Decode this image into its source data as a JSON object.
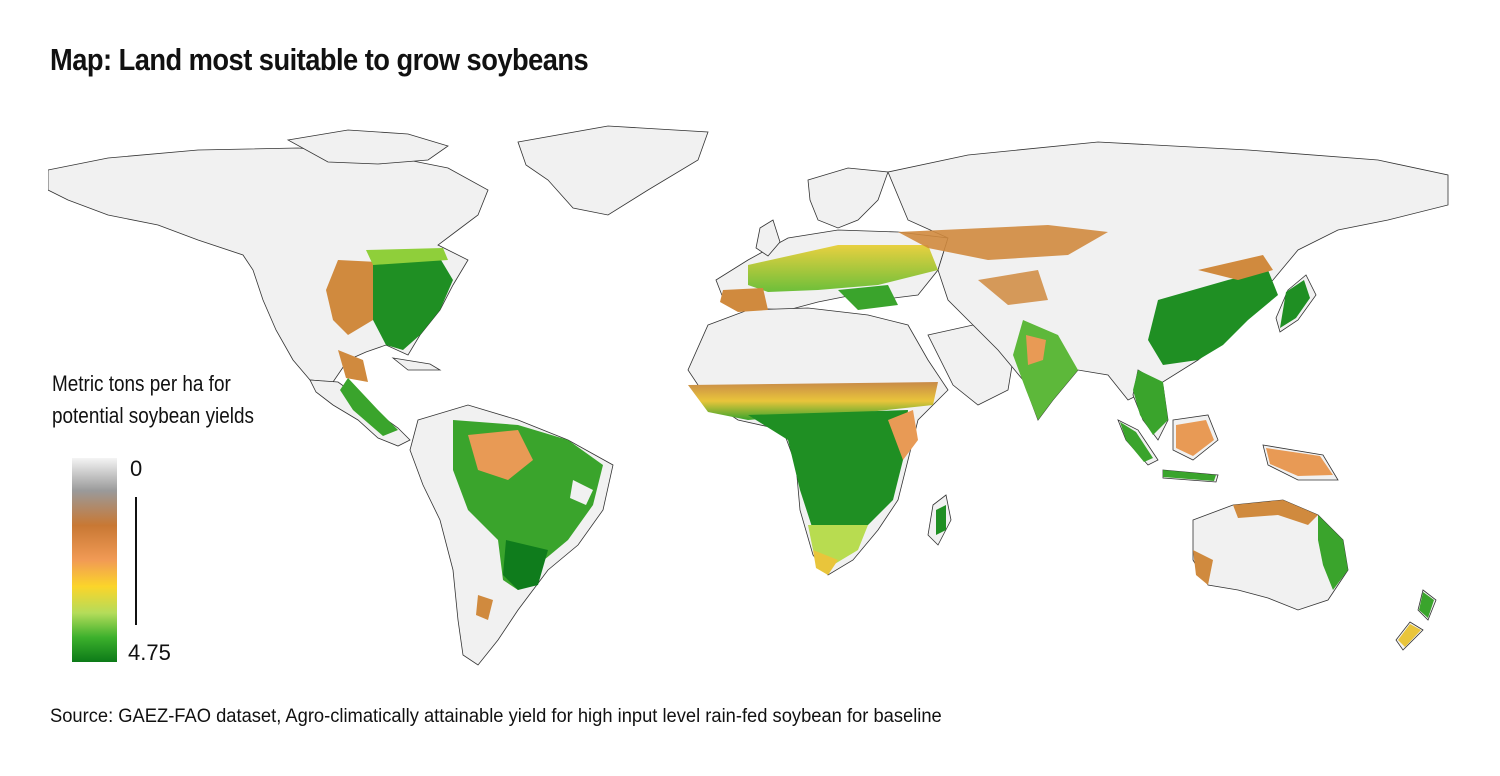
{
  "title": "Map: Land most suitable to grow soybeans",
  "legend": {
    "title_line1": "Metric tons per ha for",
    "title_line2": "potential soybean yields",
    "min_label": "0",
    "max_label": "4.75",
    "colors": [
      "#f4f4f4",
      "#9a9a9a",
      "#c87834",
      "#f19a55",
      "#fbd52a",
      "#b4dc5a",
      "#3cb02c",
      "#0c7a18"
    ]
  },
  "source": "Source: GAEZ-FAO dataset, Agro-climatically attainable yield for high input level rain-fed soybean for baseline",
  "colors": {
    "land_unsuitable": "#f1f1f1",
    "border": "#2a2a2a",
    "high_yield": "#1f8f23",
    "medium_yield": "#8fcf3a",
    "low_yield": "#d08a3e"
  }
}
